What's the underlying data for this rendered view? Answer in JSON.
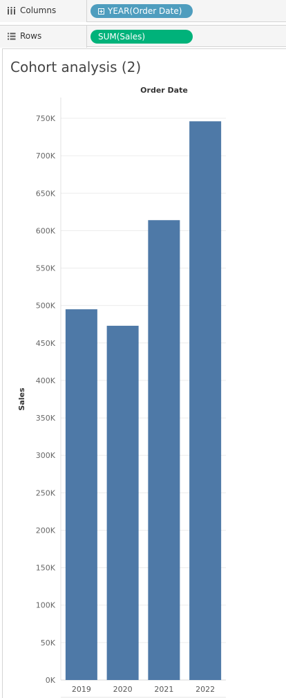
{
  "shelves": {
    "columns": {
      "label": "Columns",
      "pill": "YEAR(Order Date)",
      "pill_color": "#4e9dbe"
    },
    "rows": {
      "label": "Rows",
      "pill": "SUM(Sales)",
      "pill_color": "#00b27a"
    }
  },
  "sheet": {
    "title": "Cohort analysis (2)"
  },
  "chart_data": {
    "type": "bar",
    "title": "",
    "header": "Order Date",
    "xlabel": "",
    "ylabel": "Sales",
    "categories": [
      "2019",
      "2020",
      "2021",
      "2022"
    ],
    "values": [
      495000,
      473000,
      614000,
      746000
    ],
    "ylim": [
      0,
      750000
    ],
    "yticks": [
      "0K",
      "50K",
      "100K",
      "150K",
      "200K",
      "250K",
      "300K",
      "350K",
      "400K",
      "450K",
      "500K",
      "550K",
      "600K",
      "650K",
      "700K",
      "750K"
    ],
    "grid": true,
    "bar_color": "#4e79a7"
  }
}
